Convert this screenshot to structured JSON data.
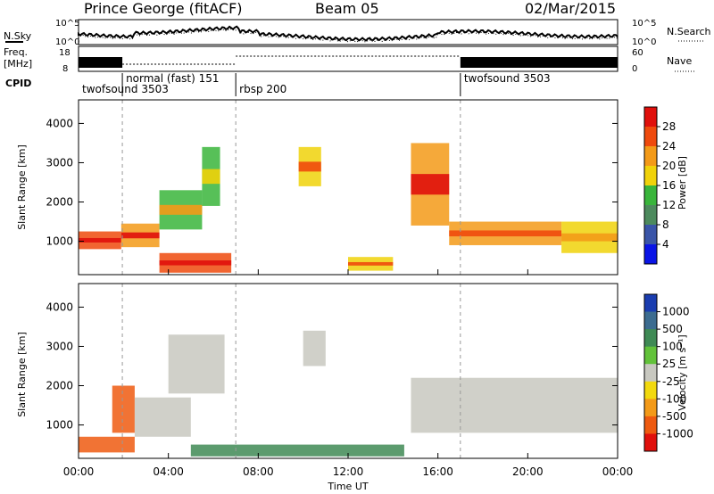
{
  "header": {
    "radar": "Prince George (fitACF)",
    "beam": "Beam 05",
    "date": "02/Mar/2015"
  },
  "noise_panel": {
    "left_label": "N.Sky",
    "right_label": "N.Search",
    "left_ticks": [
      "10^5",
      "10^0"
    ],
    "right_ticks": [
      "10^5",
      "10^0"
    ]
  },
  "freq_panel": {
    "left_label_1": "Freq.",
    "left_label_2": "[MHz]",
    "right_label": "Nave",
    "left_ticks": [
      "18",
      "8"
    ],
    "right_ticks": [
      "60",
      "0"
    ]
  },
  "cpid": {
    "label": "CPID",
    "segments": [
      {
        "name": "twofsound 3503",
        "start_h": 0,
        "end_h": 1.95
      },
      {
        "name": "normal (fast) 151",
        "start_h": 1.95,
        "end_h": 7.0
      },
      {
        "name": "rbsp 200",
        "start_h": 7.0,
        "end_h": 17.0
      },
      {
        "name": "twofsound 3503",
        "start_h": 17.0,
        "end_h": 24.0
      }
    ]
  },
  "chart_data": [
    {
      "type": "heatmap",
      "title": "Power",
      "xlabel": "",
      "ylabel": "Slant Range [km]",
      "x_range_hours": [
        0,
        24
      ],
      "ylim": [
        150,
        4600
      ],
      "yticks": [
        "1000",
        "2000",
        "3000",
        "4000"
      ],
      "colorbar": {
        "label": "Power [dB]",
        "min": 0,
        "max": 32,
        "ticks": [
          "4",
          "8",
          "12",
          "16",
          "20",
          "24",
          "28"
        ],
        "colors": [
          "#0a14e6",
          "#3a55a8",
          "#4d8a5d",
          "#39b53b",
          "#f0d20a",
          "#f39a18",
          "#ef4a0d",
          "#e0100c"
        ]
      },
      "echo_bands": [
        {
          "start_h": 0.0,
          "end_h": 1.9,
          "range_km": [
            800,
            1250
          ],
          "level_db": 24
        },
        {
          "start_h": 1.9,
          "end_h": 3.6,
          "range_km": [
            850,
            1450
          ],
          "level_db": 22
        },
        {
          "start_h": 3.6,
          "end_h": 5.5,
          "range_km": [
            1300,
            2300
          ],
          "level_db": 14
        },
        {
          "start_h": 5.5,
          "end_h": 6.3,
          "range_km": [
            1900,
            3400
          ],
          "level_db": 12
        },
        {
          "start_h": 3.6,
          "end_h": 6.8,
          "range_km": [
            200,
            700
          ],
          "level_db": 24
        },
        {
          "start_h": 9.8,
          "end_h": 10.8,
          "range_km": [
            2400,
            3400
          ],
          "level_db": 18
        },
        {
          "start_h": 12.0,
          "end_h": 14.0,
          "range_km": [
            250,
            600
          ],
          "level_db": 18
        },
        {
          "start_h": 14.8,
          "end_h": 16.5,
          "range_km": [
            1400,
            3500
          ],
          "level_db": 22
        },
        {
          "start_h": 16.5,
          "end_h": 21.5,
          "range_km": [
            900,
            1500
          ],
          "level_db": 20
        },
        {
          "start_h": 21.5,
          "end_h": 24.0,
          "range_km": [
            700,
            1500
          ],
          "level_db": 16
        }
      ]
    },
    {
      "type": "heatmap",
      "title": "Velocity",
      "xlabel": "Time UT",
      "ylabel": "Slant Range [km]",
      "x_range_hours": [
        0,
        24
      ],
      "ylim": [
        150,
        4600
      ],
      "xticks": [
        "00:00",
        "04:00",
        "08:00",
        "12:00",
        "16:00",
        "20:00",
        "00:00"
      ],
      "yticks": [
        "1000",
        "2000",
        "3000",
        "4000"
      ],
      "colorbar": {
        "label": "Velocity [m s⁻¹]",
        "ticks": [
          "1000",
          "500",
          "100",
          "25",
          "-25",
          "-100",
          "-500",
          "-1000"
        ],
        "colors": [
          "#1a3db0",
          "#3c6c90",
          "#3f8a55",
          "#62c23a",
          "#c8c8c0",
          "#f2d90e",
          "#f39a18",
          "#ee5a10",
          "#e0100c"
        ]
      },
      "echo_bands": [
        {
          "start_h": 0.0,
          "end_h": 2.5,
          "range_km": [
            300,
            700
          ],
          "velocity": -300
        },
        {
          "start_h": 1.5,
          "end_h": 2.5,
          "range_km": [
            800,
            2000
          ],
          "velocity": -600
        },
        {
          "start_h": 2.5,
          "end_h": 5.0,
          "range_km": [
            700,
            1700
          ],
          "velocity": 0
        },
        {
          "start_h": 4.0,
          "end_h": 6.5,
          "range_km": [
            1800,
            3300
          ],
          "velocity": 0
        },
        {
          "start_h": 10.0,
          "end_h": 11.0,
          "range_km": [
            2500,
            3400
          ],
          "velocity": 0
        },
        {
          "start_h": 14.8,
          "end_h": 24.0,
          "range_km": [
            800,
            2200
          ],
          "velocity": 0
        },
        {
          "start_h": 5.0,
          "end_h": 14.5,
          "range_km": [
            200,
            500
          ],
          "velocity": 200
        }
      ]
    }
  ]
}
